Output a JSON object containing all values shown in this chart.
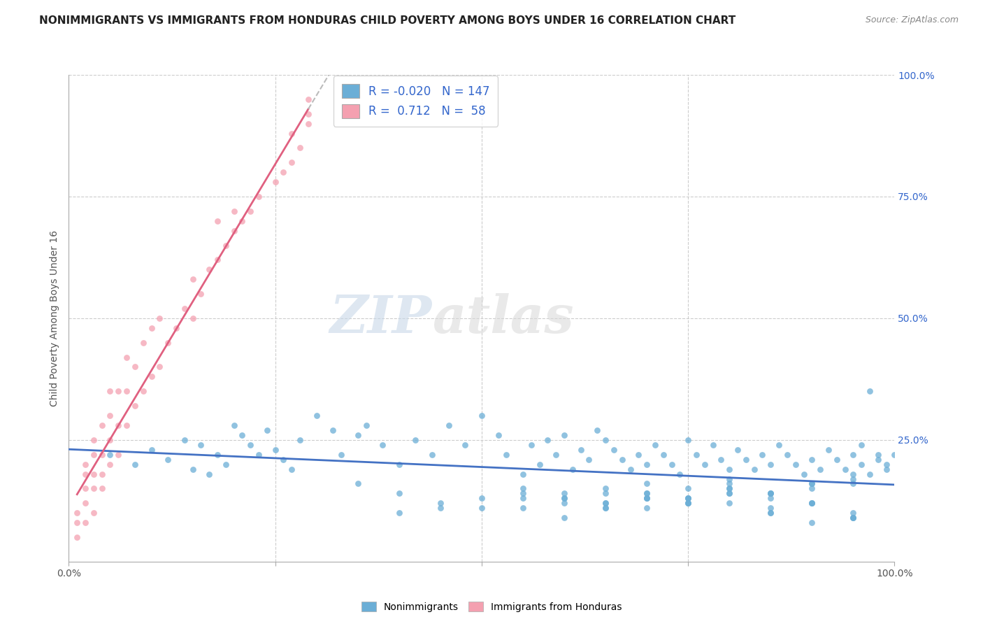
{
  "title": "NONIMMIGRANTS VS IMMIGRANTS FROM HONDURAS CHILD POVERTY AMONG BOYS UNDER 16 CORRELATION CHART",
  "source": "Source: ZipAtlas.com",
  "ylabel": "Child Poverty Among Boys Under 16",
  "xlim": [
    0.0,
    1.0
  ],
  "ylim": [
    0.0,
    1.0
  ],
  "grid_color": "#cccccc",
  "background_color": "#ffffff",
  "nonimmigrants_color": "#6baed6",
  "immigrants_color": "#f4a0b0",
  "nonimmigrants_R": -0.02,
  "nonimmigrants_N": 147,
  "immigrants_R": 0.712,
  "immigrants_N": 58,
  "legend_R_color": "#3366cc",
  "nonimmigrants_line_color": "#4472c4",
  "immigrants_line_color": "#e06080",
  "watermark_zip": "ZIP",
  "watermark_atlas": "atlas",
  "scatter_size": 40,
  "nonimmigrants_x": [
    0.05,
    0.08,
    0.1,
    0.12,
    0.14,
    0.15,
    0.16,
    0.17,
    0.18,
    0.19,
    0.2,
    0.21,
    0.22,
    0.23,
    0.24,
    0.25,
    0.26,
    0.27,
    0.28,
    0.3,
    0.32,
    0.33,
    0.35,
    0.36,
    0.38,
    0.4,
    0.42,
    0.44,
    0.46,
    0.48,
    0.5,
    0.52,
    0.53,
    0.55,
    0.56,
    0.57,
    0.58,
    0.59,
    0.6,
    0.61,
    0.62,
    0.63,
    0.64,
    0.65,
    0.66,
    0.67,
    0.68,
    0.69,
    0.7,
    0.71,
    0.72,
    0.73,
    0.74,
    0.75,
    0.76,
    0.77,
    0.78,
    0.79,
    0.8,
    0.81,
    0.82,
    0.83,
    0.84,
    0.85,
    0.86,
    0.87,
    0.88,
    0.89,
    0.9,
    0.91,
    0.92,
    0.93,
    0.94,
    0.95,
    0.96,
    0.97,
    0.98,
    0.99,
    1.0,
    0.35,
    0.4,
    0.45,
    0.5,
    0.55,
    0.6,
    0.65,
    0.7,
    0.75,
    0.8,
    0.85,
    0.9,
    0.95,
    0.4,
    0.45,
    0.55,
    0.6,
    0.65,
    0.7,
    0.75,
    0.8,
    0.85,
    0.9,
    0.95,
    0.5,
    0.55,
    0.6,
    0.65,
    0.7,
    0.75,
    0.8,
    0.85,
    0.9,
    0.95,
    0.55,
    0.6,
    0.65,
    0.7,
    0.75,
    0.8,
    0.85,
    0.9,
    0.95,
    0.6,
    0.65,
    0.7,
    0.75,
    0.8,
    0.85,
    0.9,
    0.95,
    0.65,
    0.7,
    0.75,
    0.8,
    0.85,
    0.9,
    0.95,
    0.7,
    0.75,
    0.8,
    0.85,
    0.9,
    0.95,
    0.99,
    0.98,
    0.97,
    0.96
  ],
  "nonimmigrants_y": [
    0.22,
    0.2,
    0.23,
    0.21,
    0.25,
    0.19,
    0.24,
    0.18,
    0.22,
    0.2,
    0.28,
    0.26,
    0.24,
    0.22,
    0.27,
    0.23,
    0.21,
    0.19,
    0.25,
    0.3,
    0.27,
    0.22,
    0.26,
    0.28,
    0.24,
    0.2,
    0.25,
    0.22,
    0.28,
    0.24,
    0.3,
    0.26,
    0.22,
    0.18,
    0.24,
    0.2,
    0.25,
    0.22,
    0.26,
    0.19,
    0.23,
    0.21,
    0.27,
    0.25,
    0.23,
    0.21,
    0.19,
    0.22,
    0.2,
    0.24,
    0.22,
    0.2,
    0.18,
    0.25,
    0.22,
    0.2,
    0.24,
    0.21,
    0.19,
    0.23,
    0.21,
    0.19,
    0.22,
    0.2,
    0.24,
    0.22,
    0.2,
    0.18,
    0.21,
    0.19,
    0.23,
    0.21,
    0.19,
    0.22,
    0.2,
    0.18,
    0.21,
    0.19,
    0.22,
    0.16,
    0.14,
    0.12,
    0.13,
    0.15,
    0.14,
    0.12,
    0.16,
    0.13,
    0.15,
    0.14,
    0.12,
    0.16,
    0.1,
    0.11,
    0.14,
    0.13,
    0.15,
    0.14,
    0.12,
    0.16,
    0.13,
    0.15,
    0.17,
    0.11,
    0.13,
    0.12,
    0.14,
    0.13,
    0.15,
    0.17,
    0.14,
    0.16,
    0.09,
    0.11,
    0.13,
    0.12,
    0.14,
    0.13,
    0.15,
    0.11,
    0.08,
    0.1,
    0.09,
    0.11,
    0.13,
    0.12,
    0.14,
    0.1,
    0.12,
    0.09,
    0.11,
    0.13,
    0.12,
    0.14,
    0.1,
    0.12,
    0.09,
    0.11,
    0.13,
    0.12,
    0.14,
    0.16,
    0.18,
    0.2,
    0.22,
    0.35,
    0.24
  ],
  "immigrants_x": [
    0.01,
    0.01,
    0.01,
    0.02,
    0.02,
    0.02,
    0.02,
    0.02,
    0.03,
    0.03,
    0.03,
    0.03,
    0.03,
    0.04,
    0.04,
    0.04,
    0.04,
    0.05,
    0.05,
    0.05,
    0.05,
    0.06,
    0.06,
    0.06,
    0.07,
    0.07,
    0.07,
    0.08,
    0.08,
    0.09,
    0.09,
    0.1,
    0.1,
    0.11,
    0.11,
    0.12,
    0.13,
    0.14,
    0.15,
    0.15,
    0.16,
    0.17,
    0.18,
    0.18,
    0.19,
    0.2,
    0.2,
    0.21,
    0.22,
    0.23,
    0.25,
    0.26,
    0.27,
    0.27,
    0.28,
    0.29,
    0.29,
    0.29
  ],
  "immigrants_y": [
    0.05,
    0.08,
    0.1,
    0.08,
    0.12,
    0.15,
    0.18,
    0.2,
    0.1,
    0.15,
    0.18,
    0.22,
    0.25,
    0.15,
    0.18,
    0.22,
    0.28,
    0.2,
    0.25,
    0.3,
    0.35,
    0.22,
    0.28,
    0.35,
    0.28,
    0.35,
    0.42,
    0.32,
    0.4,
    0.35,
    0.45,
    0.38,
    0.48,
    0.4,
    0.5,
    0.45,
    0.48,
    0.52,
    0.5,
    0.58,
    0.55,
    0.6,
    0.62,
    0.7,
    0.65,
    0.68,
    0.72,
    0.7,
    0.72,
    0.75,
    0.78,
    0.8,
    0.82,
    0.88,
    0.85,
    0.9,
    0.92,
    0.95
  ]
}
